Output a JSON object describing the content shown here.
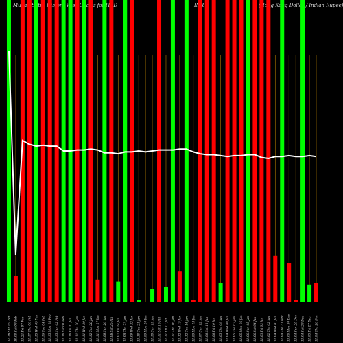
{
  "chart_data": {
    "type": "bar",
    "title_left": "MunafaSutra History Wise Charts for HKD",
    "title_right": "(Hong Kong Dollar / Indian Rupee)",
    "title_mid": "INR",
    "colors": {
      "background": "#000000",
      "up": "#00ff00",
      "down": "#ff0000",
      "line": "#ffffff",
      "grid": "#b07a00",
      "text": "#dddddd"
    },
    "grid": true,
    "categories": [
      "12.16 Sun 09 Feb",
      "10.00 Sat 08 Feb",
      "11.21 Fri 07 Feb",
      "11.17 Thu 06 Feb",
      "11.15 Wed 05 Feb",
      "11.16 Tue 04 Feb",
      "11.15 Mon 03 Feb",
      "11.15 Sun 02 Feb",
      "11.10 Sat 01 Feb",
      "11.10 Fri 31 Jan",
      "11.11 Thu 30 Jan",
      "11.11 Wed 29 Jan",
      "11.12 Tue 28 Jan",
      "11.11 Mon 27 Jan",
      "11.08 Sun 26 Jan",
      "11.08 Sat 25 Jan",
      "11.07 Fri 24 Jan",
      "11.09 Thu 23 Jan",
      "11.09 Wed 22 Jan",
      "11.10 Tue 21 Jan",
      "11.09 Mon 20 Jan",
      "11.10 Sun 19 Jan",
      "11.11 Sat 18 Jan",
      "11.11 Fri 17 Jan",
      "11.11 Thu 16 Jan",
      "11.12 Wed 15 Jan",
      "11.12 Tue 14 Jan",
      "11.09 Mon 13 Jan",
      "11.07 Sun 12 Jan",
      "11.06 Sat 11 Jan",
      "11.06 Fri 10 Jan",
      "11.05 Thu 09 Jan",
      "11.04 Wed 08 Jan",
      "11.05 Tue 07 Jan",
      "11.05 Mon 06 Jan",
      "11.06 Sun 05 Jan",
      "11.06 Sat 04 Jan",
      "11.03 Fri 03 Jan",
      "11.02 Thu 02 Jan",
      "11.04 Wed 01 Jan",
      "11.04 Tue 31 Dec",
      "11.05 Mon 30 Dec",
      "11.04 Sun 29 Dec",
      "11.04 Sat 28 Dec",
      "11.05 Fri 27 Dec",
      "11.04 Thu 26 Dec"
    ],
    "candle": [
      "up",
      "down",
      "down",
      "down",
      "up",
      "down",
      "down",
      "down",
      "up",
      "up",
      "down",
      "up",
      "down",
      "down",
      "up",
      "down",
      "up",
      "up",
      "down",
      "up",
      "up",
      "up",
      "down",
      "up",
      "up",
      "down",
      "up",
      "down",
      "down",
      "down",
      "down",
      "up",
      "down",
      "down",
      "down",
      "up",
      "down",
      "down",
      "down",
      "down",
      "up",
      "down",
      "down",
      "up",
      "up",
      "down"
    ],
    "price": [
      12.16,
      10.0,
      11.21,
      11.17,
      11.15,
      11.16,
      11.15,
      11.15,
      11.1,
      11.1,
      11.11,
      11.11,
      11.12,
      11.11,
      11.08,
      11.08,
      11.07,
      11.09,
      11.09,
      11.1,
      11.09,
      11.1,
      11.11,
      11.11,
      11.11,
      11.12,
      11.12,
      11.09,
      11.07,
      11.06,
      11.06,
      11.05,
      11.04,
      11.05,
      11.05,
      11.06,
      11.06,
      11.03,
      11.02,
      11.04,
      11.04,
      11.05,
      11.04,
      11.04,
      11.05,
      11.04
    ],
    "tall_bar": [
      true,
      false,
      true,
      true,
      true,
      true,
      true,
      true,
      true,
      true,
      true,
      true,
      true,
      false,
      true,
      true,
      false,
      true,
      true,
      false,
      false,
      false,
      true,
      false,
      true,
      false,
      true,
      false,
      true,
      true,
      true,
      false,
      true,
      true,
      true,
      true,
      true,
      true,
      true,
      false,
      true,
      false,
      false,
      true,
      false,
      false
    ],
    "volume_short": [
      0,
      0.27,
      0,
      0,
      0,
      0,
      0,
      0,
      0,
      0,
      0,
      0,
      0,
      0.23,
      0,
      0,
      0.21,
      0,
      0,
      0.01,
      0,
      0.13,
      0,
      0.15,
      0,
      0.32,
      0,
      0.01,
      0,
      0,
      0,
      0.2,
      0,
      0,
      0,
      0,
      0,
      0,
      0,
      0.48,
      0,
      0.4,
      0.02,
      0,
      0.18,
      0.2
    ],
    "volume_short_max": 1.0,
    "ylim": [
      9.5,
      12.7
    ]
  }
}
